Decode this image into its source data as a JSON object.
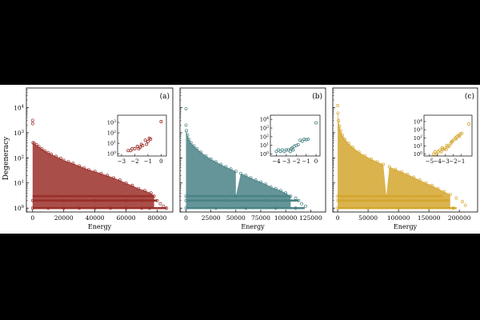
{
  "figure": {
    "shared_ylabel": "Degeneracy",
    "xlabel": "Energy"
  },
  "chart_data": [
    {
      "type": "scatter",
      "panel_label": "(a)",
      "color": "#9b2f2a",
      "xlabel": "Energy",
      "ylabel": "Degeneracy",
      "yscale": "log",
      "xlim": [
        -4000,
        90000
      ],
      "ylim": [
        0.7,
        60000
      ],
      "xticks": [
        0,
        20000,
        40000,
        60000,
        80000
      ],
      "xtick_labels": [
        "0",
        "20000",
        "40000",
        "60000",
        "80000"
      ],
      "yticks": [
        1,
        10,
        100,
        1000,
        10000
      ],
      "ytick_labels": [
        "10^0",
        "10^1",
        "10^2",
        "10^3",
        "10^4"
      ],
      "series": [
        {
          "values": [
            [
              0,
              3100
            ],
            [
              0,
              2300
            ],
            [
              300,
              400
            ],
            [
              1000,
              380
            ],
            [
              2500,
              330
            ],
            [
              4000,
              280
            ],
            [
              6000,
              230
            ],
            [
              8000,
              190
            ],
            [
              10000,
              160
            ],
            [
              12000,
              140
            ],
            [
              15000,
              115
            ],
            [
              18000,
              95
            ],
            [
              20000,
              80
            ],
            [
              23000,
              70
            ],
            [
              26000,
              60
            ],
            [
              30000,
              48
            ],
            [
              33000,
              40
            ],
            [
              36000,
              34
            ],
            [
              40000,
              29
            ],
            [
              44000,
              24
            ],
            [
              48000,
              20
            ],
            [
              52000,
              16
            ],
            [
              56000,
              13
            ],
            [
              60000,
              10
            ],
            [
              64000,
              8
            ],
            [
              68000,
              6
            ],
            [
              72000,
              5
            ],
            [
              76000,
              4
            ],
            [
              78000,
              3
            ],
            [
              80000,
              2
            ],
            [
              82000,
              1.5
            ],
            [
              84000,
              1.2
            ],
            [
              86000,
              1
            ],
            [
              0,
              1
            ],
            [
              10000,
              1
            ],
            [
              20000,
              1
            ],
            [
              30000,
              1
            ],
            [
              40000,
              1
            ],
            [
              50000,
              1
            ],
            [
              60000,
              1
            ],
            [
              70000,
              1
            ],
            [
              75000,
              1
            ],
            [
              0,
              2
            ],
            [
              20000,
              2
            ],
            [
              40000,
              2
            ],
            [
              60000,
              2
            ],
            [
              70000,
              2
            ]
          ]
        }
      ],
      "inset": {
        "xlim": [
          -3.3,
          0.4
        ],
        "ylim": [
          0.6,
          5000
        ],
        "xticks": [
          -3,
          -2,
          -1,
          0
        ],
        "xtick_labels": [
          "−3",
          "−2",
          "−1",
          "0"
        ],
        "yticks": [
          1,
          10,
          100,
          1000
        ],
        "ytick_labels": [
          "10^0",
          "10^1",
          "10^2",
          "10^3"
        ],
        "points": [
          [
            -2.5,
            2
          ],
          [
            -2.3,
            2
          ],
          [
            -2.2,
            3
          ],
          [
            -2,
            3
          ],
          [
            -1.8,
            5
          ],
          [
            -1.6,
            4
          ],
          [
            -1.5,
            8
          ],
          [
            -1.4,
            6
          ],
          [
            -1.2,
            20
          ],
          [
            -1,
            15
          ],
          [
            -0.9,
            30
          ],
          [
            -0.8,
            25
          ],
          [
            -1.1,
            8
          ],
          [
            -1.7,
            3
          ],
          [
            0,
            1200
          ]
        ]
      }
    },
    {
      "type": "scatter",
      "panel_label": "(b)",
      "color": "#4a8386",
      "xlabel": "Energy",
      "yscale": "log",
      "xlim": [
        -6000,
        140000
      ],
      "ylim": [
        0.7,
        60000
      ],
      "xticks": [
        0,
        25000,
        50000,
        75000,
        100000,
        125000
      ],
      "xtick_labels": [
        "0",
        "25000",
        "50000",
        "75000",
        "100000",
        "125000"
      ],
      "yticks": [
        1,
        10,
        100,
        1000,
        10000
      ],
      "series": [
        {
          "values": [
            [
              0,
              9000
            ],
            [
              0,
              2000
            ],
            [
              500,
              1200
            ],
            [
              1500,
              800
            ],
            [
              3000,
              550
            ],
            [
              5000,
              400
            ],
            [
              8000,
              300
            ],
            [
              11000,
              230
            ],
            [
              15000,
              170
            ],
            [
              20000,
              120
            ],
            [
              25000,
              90
            ],
            [
              30000,
              70
            ],
            [
              35000,
              55
            ],
            [
              40000,
              44
            ],
            [
              45000,
              36
            ],
            [
              50000,
              29
            ],
            [
              55000,
              24
            ],
            [
              60000,
              20
            ],
            [
              65000,
              16
            ],
            [
              70000,
              13
            ],
            [
              75000,
              11
            ],
            [
              80000,
              9
            ],
            [
              85000,
              7
            ],
            [
              90000,
              6
            ],
            [
              95000,
              5
            ],
            [
              100000,
              4
            ],
            [
              105000,
              3
            ],
            [
              110000,
              2.5
            ],
            [
              113000,
              2
            ],
            [
              116000,
              1.5
            ],
            [
              120000,
              1.2
            ],
            [
              0,
              1
            ],
            [
              30000,
              1
            ],
            [
              60000,
              1
            ],
            [
              90000,
              1
            ],
            [
              110000,
              1
            ],
            [
              0,
              2
            ],
            [
              40000,
              2
            ],
            [
              80000,
              2
            ],
            [
              100000,
              2
            ],
            [
              0,
              3
            ],
            [
              50000,
              3
            ]
          ]
        }
      ],
      "inset": {
        "xlim": [
          -4.6,
          0.4
        ],
        "ylim": [
          0.6,
          30000
        ],
        "xticks": [
          -4,
          -3,
          -2,
          -1,
          0
        ],
        "xtick_labels": [
          "−4",
          "−3",
          "−2",
          "−1",
          "0"
        ],
        "yticks": [
          1,
          10,
          100,
          1000,
          10000
        ],
        "ytick_labels": [
          "10^0",
          "10^1",
          "10^2",
          "10^3",
          "10^4"
        ],
        "points": [
          [
            -4,
            2
          ],
          [
            -3.8,
            3
          ],
          [
            -3.6,
            2
          ],
          [
            -3.4,
            3
          ],
          [
            -3.2,
            2
          ],
          [
            -3,
            3
          ],
          [
            -2.8,
            3
          ],
          [
            -2.6,
            2
          ],
          [
            -2.4,
            5
          ],
          [
            -2.2,
            8
          ],
          [
            -2,
            10
          ],
          [
            -1.8,
            12
          ],
          [
            -1.6,
            40
          ],
          [
            -1.4,
            30
          ],
          [
            -1.2,
            50
          ],
          [
            -1,
            45
          ],
          [
            -0.8,
            50
          ],
          [
            -2.3,
            3
          ],
          [
            -2.5,
            4
          ],
          [
            0,
            4000
          ]
        ]
      }
    },
    {
      "type": "scatter",
      "panel_label": "(c)",
      "color": "#d4a62e",
      "xlabel": "Energy",
      "yscale": "log",
      "xlim": [
        -8000,
        230000
      ],
      "ylim": [
        0.7,
        60000
      ],
      "xticks": [
        0,
        50000,
        100000,
        150000,
        200000
      ],
      "xtick_labels": [
        "0",
        "50000",
        "100000",
        "150000",
        "200000"
      ],
      "yticks": [
        1,
        10,
        100,
        1000,
        10000
      ],
      "series": [
        {
          "values": [
            [
              0,
              12000
            ],
            [
              500,
              6000
            ],
            [
              1500,
              3000
            ],
            [
              3000,
              1800
            ],
            [
              5000,
              1200
            ],
            [
              8000,
              800
            ],
            [
              12000,
              550
            ],
            [
              18000,
              380
            ],
            [
              25000,
              260
            ],
            [
              35000,
              170
            ],
            [
              45000,
              120
            ],
            [
              55000,
              90
            ],
            [
              65000,
              70
            ],
            [
              75000,
              55
            ],
            [
              85000,
              44
            ],
            [
              95000,
              35
            ],
            [
              105000,
              28
            ],
            [
              115000,
              22
            ],
            [
              125000,
              17
            ],
            [
              135000,
              13
            ],
            [
              145000,
              10
            ],
            [
              155000,
              8
            ],
            [
              165000,
              6
            ],
            [
              175000,
              4.5
            ],
            [
              185000,
              3.5
            ],
            [
              195000,
              2.5
            ],
            [
              205000,
              1.8
            ],
            [
              210000,
              1.3
            ],
            [
              0,
              1
            ],
            [
              50000,
              1
            ],
            [
              100000,
              1
            ],
            [
              150000,
              1
            ],
            [
              190000,
              1
            ],
            [
              0,
              2
            ],
            [
              60000,
              2
            ],
            [
              120000,
              2
            ],
            [
              180000,
              2
            ],
            [
              0,
              3
            ],
            [
              80000,
              3
            ]
          ]
        }
      ],
      "inset": {
        "xlim": [
          -5.7,
          0.4
        ],
        "ylim": [
          0.6,
          60000
        ],
        "xticks": [
          -5,
          -4,
          -3,
          -2,
          -1
        ],
        "xtick_labels": [
          "−5",
          "−4",
          "−3",
          "−2",
          "−1"
        ],
        "yticks": [
          1,
          10,
          100,
          1000,
          10000
        ],
        "ytick_labels": [
          "10^0",
          "10^1",
          "10^2",
          "10^3",
          "10^4"
        ],
        "points": [
          [
            -4.5,
            1
          ],
          [
            -4.3,
            2
          ],
          [
            -4.1,
            1
          ],
          [
            -3.9,
            2
          ],
          [
            -3.7,
            3
          ],
          [
            -3.5,
            2
          ],
          [
            -3.3,
            4
          ],
          [
            -3.1,
            5
          ],
          [
            -2.9,
            4
          ],
          [
            -2.7,
            8
          ],
          [
            -2.5,
            10
          ],
          [
            -2.3,
            20
          ],
          [
            -2.1,
            40
          ],
          [
            -1.9,
            60
          ],
          [
            -1.7,
            100
          ],
          [
            -1.5,
            150
          ],
          [
            -1.3,
            200
          ],
          [
            -1.1,
            300
          ],
          [
            -0.9,
            350
          ],
          [
            -3.4,
            6
          ],
          [
            -2.8,
            12
          ],
          [
            -2.2,
            30
          ],
          [
            -1.6,
            80
          ],
          [
            -1.2,
            150
          ],
          [
            0,
            5000
          ]
        ]
      }
    }
  ]
}
